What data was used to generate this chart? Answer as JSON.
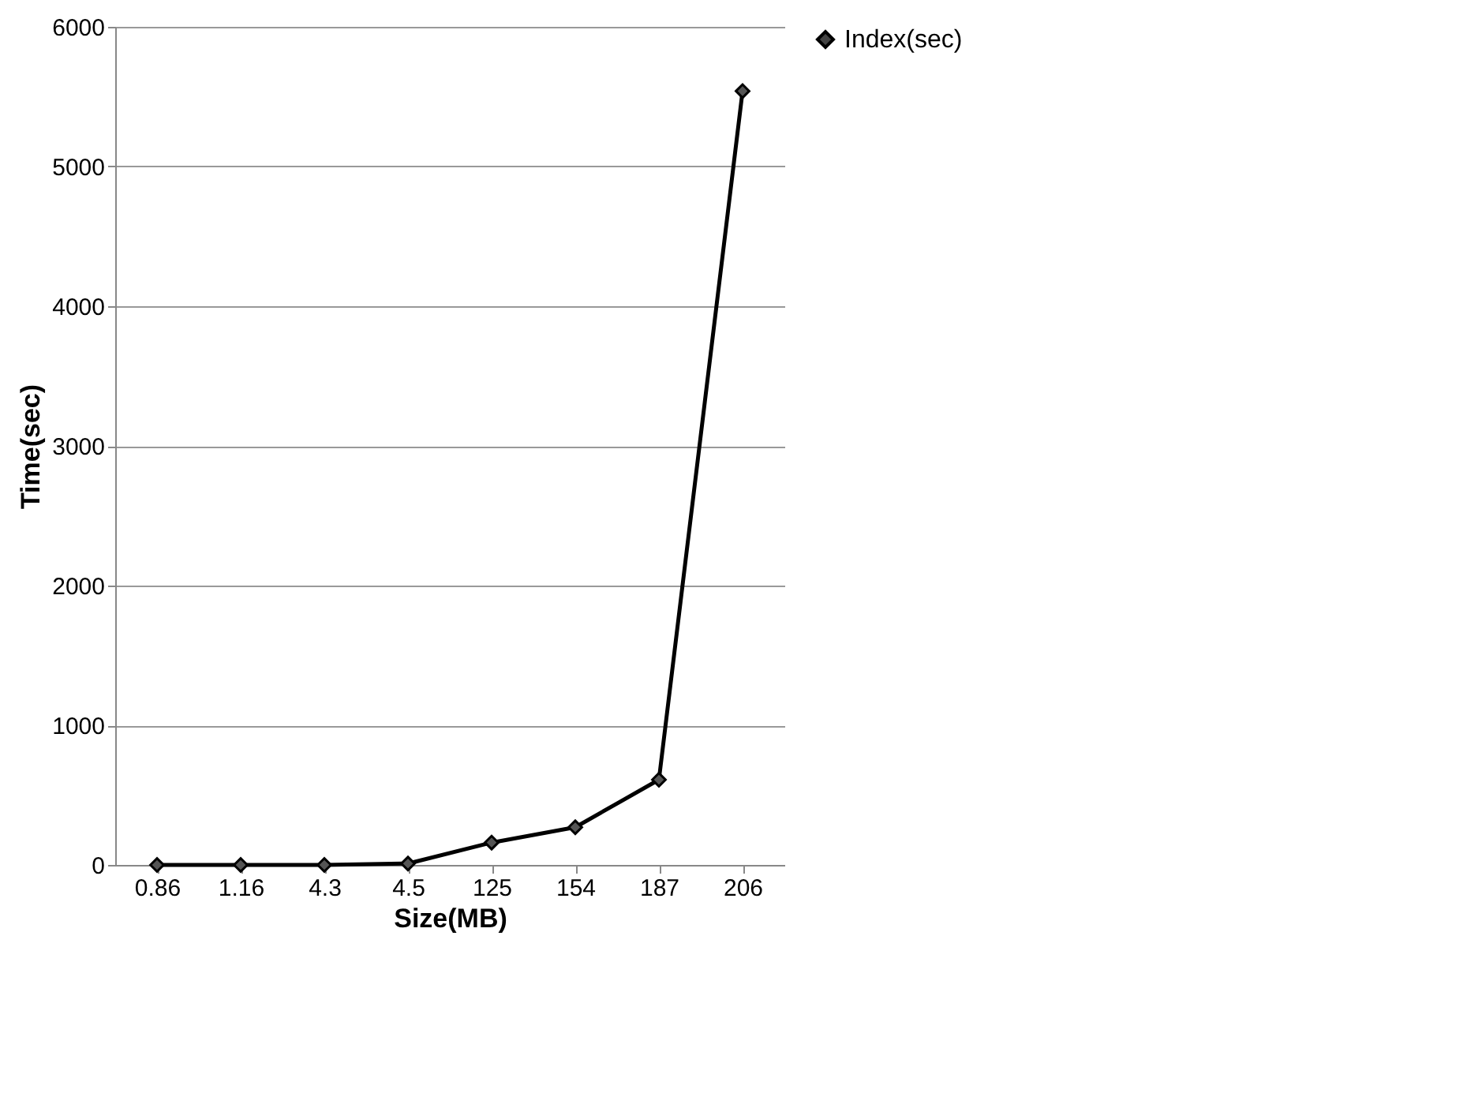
{
  "chart_data": {
    "type": "line",
    "xlabel": "Size(MB)",
    "ylabel": "Time(sec)",
    "categories": [
      "0.86",
      "1.16",
      "4.3",
      "4.5",
      "125",
      "154",
      "187",
      "206"
    ],
    "series": [
      {
        "name": "Index(sec)",
        "color": "#000000",
        "values": [
          0,
          0,
          0,
          10,
          160,
          270,
          610,
          5540
        ]
      }
    ],
    "ylim": [
      0,
      6000
    ],
    "yticks": [
      0,
      1000,
      2000,
      3000,
      4000,
      5000,
      6000
    ],
    "grid": "y",
    "legend": "right",
    "marker": "diamond",
    "line_style": "solid"
  }
}
